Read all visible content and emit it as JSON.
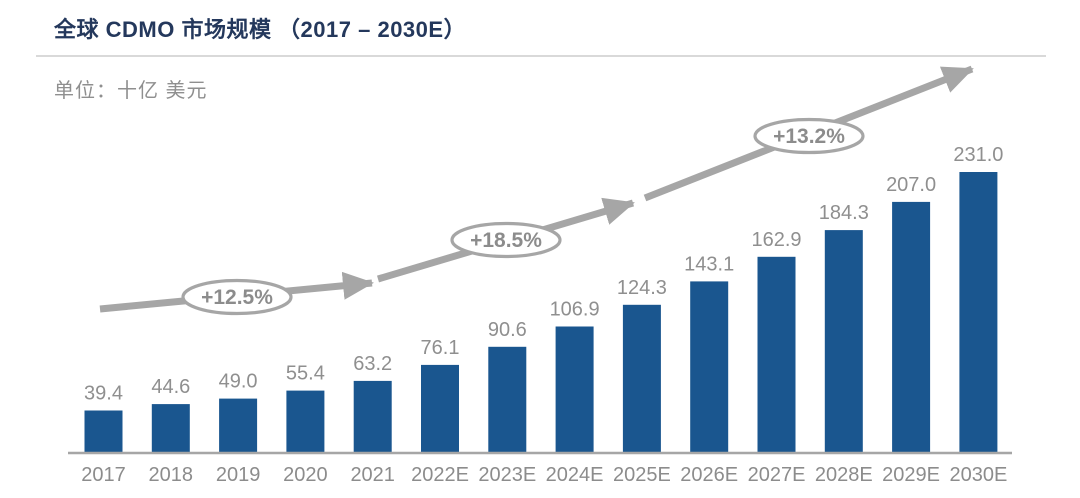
{
  "header": {
    "title": "全球 CDMO 市场规模 （2017 – 2030E）",
    "unit_label": "单位：十亿 美元"
  },
  "colors": {
    "background": "#FFFFFF",
    "title_text": "#24385C",
    "divider": "#D9D9D9",
    "bar": "#1A568F",
    "value_label_text": "#8F8F8F",
    "category_label_text": "#8C8C8C",
    "axis_line": "#A6A6A6",
    "arrow": "#A6A6A6",
    "bubble_fill": "#FFFFFF",
    "bubble_stroke": "#A6A6A6",
    "bubble_text": "#8C8C8C"
  },
  "chart_data": {
    "type": "bar",
    "title": "全球 CDMO 市场规模 （2017 – 2030E）",
    "unit": "十亿 美元",
    "xlabel": "",
    "ylabel": "",
    "ylim": [
      0,
      231
    ],
    "grid": false,
    "legend": null,
    "categories": [
      "2017",
      "2018",
      "2019",
      "2020",
      "2021",
      "2022E",
      "2023E",
      "2024E",
      "2025E",
      "2026E",
      "2027E",
      "2028E",
      "2029E",
      "2030E"
    ],
    "values": [
      39.4,
      44.6,
      49.0,
      55.4,
      63.2,
      76.1,
      90.6,
      106.9,
      124.3,
      143.1,
      162.9,
      184.3,
      207.0,
      231.0
    ],
    "value_labels": [
      "39.4",
      "44.6",
      "49.0",
      "55.4",
      "63.2",
      "76.1",
      "90.6",
      "106.9",
      "124.3",
      "143.1",
      "162.9",
      "184.3",
      "207.0",
      "231.0"
    ],
    "growth_annotations": [
      "+12.5%",
      "+18.5%",
      "+13.2%"
    ]
  }
}
